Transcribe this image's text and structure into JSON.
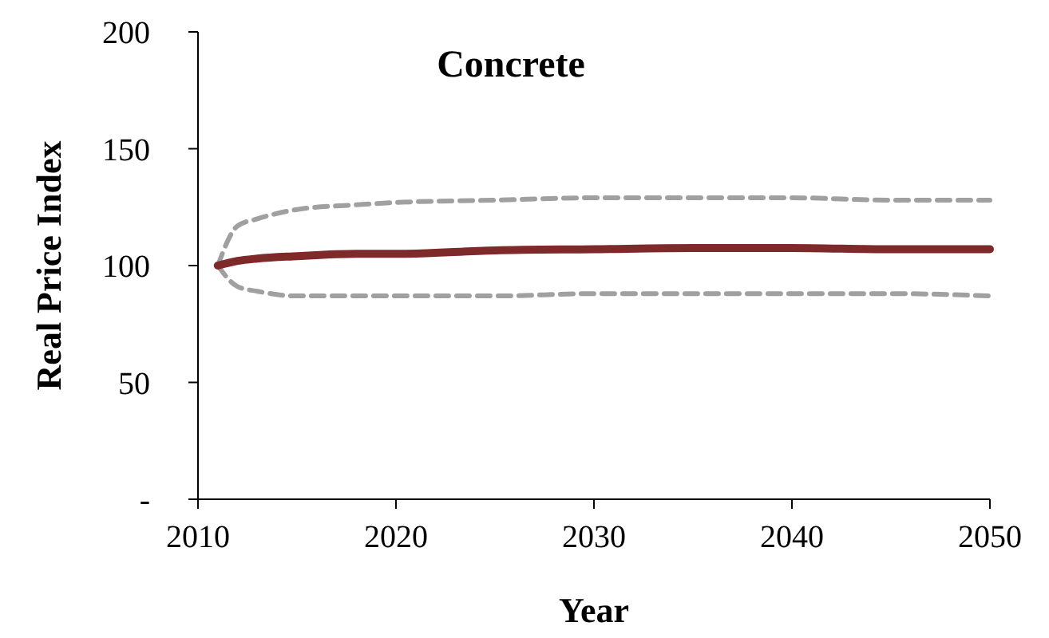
{
  "chart_data": {
    "type": "line",
    "title": "Concrete",
    "xlabel": "Year",
    "ylabel": "Real Price Index",
    "xlim": [
      2010,
      2050
    ],
    "xticks": [
      2010,
      2020,
      2030,
      2040,
      2050
    ],
    "ylim": [
      0,
      200
    ],
    "yticks": [
      {
        "value": 0,
        "label": "-"
      },
      50,
      100,
      150,
      200
    ],
    "grid": false,
    "marker": "none",
    "series": [
      {
        "color": "#a0a0a0",
        "line_style": "dashed",
        "x": [
          2011,
          2012,
          2013,
          2015,
          2018,
          2020,
          2025,
          2030,
          2035,
          2040,
          2045,
          2050
        ],
        "values": [
          100,
          117,
          120,
          124,
          126,
          127,
          128,
          129,
          129,
          129,
          128,
          128
        ]
      },
      {
        "color": "#a0a0a0",
        "line_style": "dashed",
        "x": [
          2011,
          2012,
          2013,
          2015,
          2018,
          2020,
          2025,
          2030,
          2035,
          2040,
          2045,
          2050
        ],
        "values": [
          100,
          91,
          89,
          87,
          87,
          87,
          87,
          88,
          88,
          88,
          88,
          87
        ]
      },
      {
        "color": "#7f2a2a",
        "line_style": "solid",
        "x": [
          2011,
          2012,
          2013,
          2015,
          2018,
          2020,
          2025,
          2030,
          2035,
          2040,
          2045,
          2050
        ],
        "values": [
          100,
          102,
          103,
          104,
          105,
          105,
          106.5,
          107,
          107.5,
          107.5,
          107,
          107
        ]
      }
    ]
  }
}
